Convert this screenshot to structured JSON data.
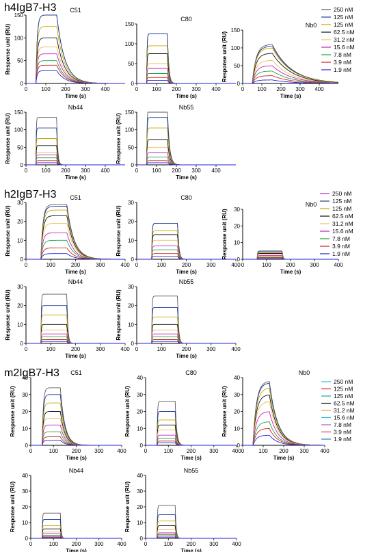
{
  "colors": [
    "#5a5a5a",
    "#1c3f94",
    "#c8a800",
    "#111111",
    "#e8c060",
    "#c020c0",
    "#20a040",
    "#d02020",
    "#2020e0"
  ],
  "legend_labels": [
    "250 nM",
    "125 nM",
    "125 nM",
    "62.5 nM",
    "31.2 nM",
    "15.6 nM",
    "7.8 nM",
    "3.9 nM",
    "1.9 nM"
  ],
  "sections": [
    {
      "title": "h4IgB7-H3",
      "legend_colors": [
        "#5a5a5a",
        "#1c3f94",
        "#c8a800",
        "#111111",
        "#e8c060",
        "#c020c0",
        "#20a040",
        "#d02020",
        "#2020e0"
      ],
      "chart_data": [
        {
          "type": "line",
          "title": "C51",
          "xlabel": "Time (s)",
          "ylabel": "Response unit (RU)",
          "xlim": [
            0,
            500
          ],
          "ylim": [
            0,
            150
          ],
          "xticks": [
            0,
            100,
            200,
            300,
            400
          ],
          "yticks": [
            0,
            50,
            100,
            150
          ],
          "kinetics": {
            "start": 50,
            "end": 155,
            "assoc_rate": 0.15,
            "dissoc_rate": 0.025
          },
          "series_max": [
            150,
            150,
            125,
            100,
            80,
            65,
            50,
            40,
            28
          ]
        },
        {
          "type": "line",
          "title": "C80",
          "xlabel": "Time (s)",
          "ylabel": "",
          "xlim": [
            0,
            500
          ],
          "ylim": [
            0,
            150
          ],
          "xticks": [
            0,
            100,
            200,
            300,
            400
          ],
          "yticks": [
            0,
            50,
            100,
            150
          ],
          "kinetics": {
            "start": 50,
            "end": 155,
            "assoc_rate": 0.5,
            "dissoc_rate": 0.15
          },
          "series_max": [
            125,
            125,
            95,
            75,
            50,
            38,
            25,
            15,
            8
          ]
        },
        {
          "type": "line",
          "title": "Nb0",
          "xlabel": "Time (s)",
          "ylabel": "Response unit (RU)",
          "xlim": [
            0,
            500
          ],
          "ylim": [
            0,
            150
          ],
          "xticks": [
            0,
            100,
            200,
            300,
            400
          ],
          "yticks": [
            0,
            50,
            100,
            150
          ],
          "kinetics": {
            "start": 50,
            "end": 155,
            "assoc_rate": 0.05,
            "dissoc_rate": 0.01
          },
          "series_max": [
            110,
            105,
            100,
            85,
            65,
            50,
            35,
            22,
            10
          ]
        },
        {
          "type": "line",
          "title": "Nb44",
          "xlabel": "Time (s)",
          "ylabel": "Response unit (RU)",
          "xlim": [
            0,
            500
          ],
          "ylim": [
            0,
            150
          ],
          "xticks": [
            0,
            100,
            200,
            300,
            400
          ],
          "yticks": [
            0,
            50,
            100,
            150
          ],
          "kinetics": {
            "start": 50,
            "end": 155,
            "assoc_rate": 0.6,
            "dissoc_rate": 0.2
          },
          "series_max": [
            135,
            105,
            75,
            55,
            35,
            28,
            20,
            12,
            6
          ]
        },
        {
          "type": "line",
          "title": "Nb55",
          "xlabel": "Time (s)",
          "ylabel": "Response unit (RU)",
          "xlim": [
            0,
            500
          ],
          "ylim": [
            0,
            150
          ],
          "xticks": [
            0,
            100,
            200,
            300,
            400
          ],
          "yticks": [
            0,
            50,
            100,
            150
          ],
          "kinetics": {
            "start": 50,
            "end": 155,
            "assoc_rate": 0.5,
            "dissoc_rate": 0.1
          },
          "series_max": [
            160,
            135,
            105,
            72,
            50,
            35,
            22,
            12,
            6
          ]
        }
      ]
    },
    {
      "title": "h2IgB7-H3",
      "legend_colors": [
        "#c020c0",
        "#1c3f94",
        "#c8a800",
        "#111111",
        "#e8c060",
        "#c020c0",
        "#20a040",
        "#d02020",
        "#2020e0"
      ],
      "chart_data": [
        {
          "type": "line",
          "title": "C51",
          "xlabel": "Time (s)",
          "ylabel": "Response unit (RU)",
          "xlim": [
            0,
            400
          ],
          "ylim": [
            0,
            30
          ],
          "xticks": [
            0,
            100,
            200,
            300,
            400
          ],
          "yticks": [
            0,
            10,
            20,
            30
          ],
          "kinetics": {
            "start": 60,
            "end": 165,
            "assoc_rate": 0.12,
            "dissoc_rate": 0.035
          },
          "series_max": [
            29,
            28,
            26,
            23,
            19,
            14,
            10,
            6,
            3
          ]
        },
        {
          "type": "line",
          "title": "C80",
          "xlabel": "Time (s)",
          "ylabel": "Response unit (RU)",
          "xlim": [
            0,
            400
          ],
          "ylim": [
            0,
            30
          ],
          "xticks": [
            0,
            100,
            200,
            300,
            400
          ],
          "yticks": [
            0,
            10,
            20,
            30
          ],
          "kinetics": {
            "start": 60,
            "end": 165,
            "assoc_rate": 0.5,
            "dissoc_rate": 0.2
          },
          "series_max": [
            19,
            19,
            15,
            13,
            10,
            7,
            5,
            3,
            1.5
          ]
        },
        {
          "type": "line",
          "title": "Nb0",
          "xlabel": "Time (s)",
          "ylabel": "Response unit (RU)",
          "xlim": [
            0,
            400
          ],
          "ylim": [
            0,
            30
          ],
          "xticks": [
            0,
            100,
            200,
            300,
            400
          ],
          "yticks": [
            0,
            10,
            20,
            30
          ],
          "kinetics": {
            "start": 60,
            "end": 165,
            "assoc_rate": 0.6,
            "dissoc_rate": 0.3
          },
          "series_max": [
            5,
            4.5,
            4,
            3.5,
            3,
            2.2,
            1.5,
            1,
            0.5
          ]
        },
        {
          "type": "line",
          "title": "Nb44",
          "xlabel": "Time (s)",
          "ylabel": "Response unit (RU)",
          "xlim": [
            0,
            400
          ],
          "ylim": [
            0,
            30
          ],
          "xticks": [
            0,
            100,
            200,
            300,
            400
          ],
          "yticks": [
            0,
            10,
            20,
            30
          ],
          "kinetics": {
            "start": 60,
            "end": 165,
            "assoc_rate": 0.6,
            "dissoc_rate": 0.25
          },
          "series_max": [
            26,
            20,
            15,
            10,
            7,
            5,
            3.5,
            2,
            1
          ]
        },
        {
          "type": "line",
          "title": "Nb55",
          "xlabel": "Time (s)",
          "ylabel": "Response unit (RU)",
          "xlim": [
            0,
            400
          ],
          "ylim": [
            0,
            30
          ],
          "xticks": [
            0,
            100,
            200,
            300,
            400
          ],
          "yticks": [
            0,
            10,
            20,
            30
          ],
          "kinetics": {
            "start": 60,
            "end": 165,
            "assoc_rate": 0.6,
            "dissoc_rate": 0.25
          },
          "series_max": [
            25,
            19,
            14,
            10,
            7,
            5,
            3.5,
            2,
            1
          ]
        }
      ]
    },
    {
      "title": "m2IgB7-H3",
      "legend_colors": [
        "#20c0e0",
        "#d02020",
        "#20a0a0",
        "#111111",
        "#e8a040",
        "#30b0e0",
        "#a060c0",
        "#d04040",
        "#2080c0"
      ],
      "chart_data": [
        {
          "type": "line",
          "title": "C51",
          "xlabel": "Time (s)",
          "ylabel": "Response unit (RU)",
          "xlim": [
            0,
            400
          ],
          "ylim": [
            0,
            40
          ],
          "xticks": [
            0,
            100,
            200,
            300,
            400
          ],
          "yticks": [
            0,
            10,
            20,
            30,
            40
          ],
          "kinetics": {
            "start": 50,
            "end": 130,
            "assoc_rate": 0.2,
            "dissoc_rate": 0.05
          },
          "series_max": [
            34,
            30,
            25,
            20,
            16,
            12,
            8,
            5,
            3
          ]
        },
        {
          "type": "line",
          "title": "C80",
          "xlabel": "Time (s)",
          "ylabel": "Response unit (RU)",
          "xlim": [
            0,
            400
          ],
          "ylim": [
            0,
            40
          ],
          "xticks": [
            0,
            100,
            200,
            300,
            400
          ],
          "yticks": [
            0,
            10,
            20,
            30,
            40
          ],
          "kinetics": {
            "start": 50,
            "end": 130,
            "assoc_rate": 0.5,
            "dissoc_rate": 0.15
          },
          "series_max": [
            26,
            20,
            15,
            12,
            9,
            6,
            4,
            2.5,
            1.5
          ]
        },
        {
          "type": "line",
          "title": "Nb0",
          "xlabel": "Time (s)",
          "ylabel": "Response unit (RU)",
          "xlim": [
            0,
            400
          ],
          "ylim": [
            0,
            40
          ],
          "xticks": [
            0,
            100,
            200,
            300,
            400
          ],
          "yticks": [
            0,
            10,
            20,
            30,
            40
          ],
          "kinetics": {
            "start": 50,
            "end": 130,
            "assoc_rate": 0.06,
            "dissoc_rate": 0.025
          },
          "series_max": [
            38,
            37,
            34,
            30,
            26,
            20,
            14,
            10,
            6
          ]
        },
        {
          "type": "line",
          "title": "Nb44",
          "xlabel": "Time (s)",
          "ylabel": "Response unit (RU)",
          "xlim": [
            0,
            400
          ],
          "ylim": [
            0,
            40
          ],
          "xticks": [
            0,
            100,
            200,
            300,
            400
          ],
          "yticks": [
            0,
            10,
            20,
            30,
            40
          ],
          "kinetics": {
            "start": 50,
            "end": 130,
            "assoc_rate": 0.7,
            "dissoc_rate": 0.3
          },
          "series_max": [
            16,
            12,
            8,
            6,
            4,
            3,
            2,
            1.2,
            0.6
          ]
        },
        {
          "type": "line",
          "title": "Nb55",
          "xlabel": "Time (s)",
          "ylabel": "Response unit (RU)",
          "xlim": [
            0,
            400
          ],
          "ylim": [
            0,
            40
          ],
          "xticks": [
            0,
            100,
            200,
            300,
            400
          ],
          "yticks": [
            0,
            10,
            20,
            30,
            40
          ],
          "kinetics": {
            "start": 50,
            "end": 130,
            "assoc_rate": 0.6,
            "dissoc_rate": 0.25
          },
          "series_max": [
            21,
            15,
            11,
            8,
            5.5,
            3.5,
            2.5,
            1.5,
            0.8
          ]
        }
      ]
    }
  ]
}
